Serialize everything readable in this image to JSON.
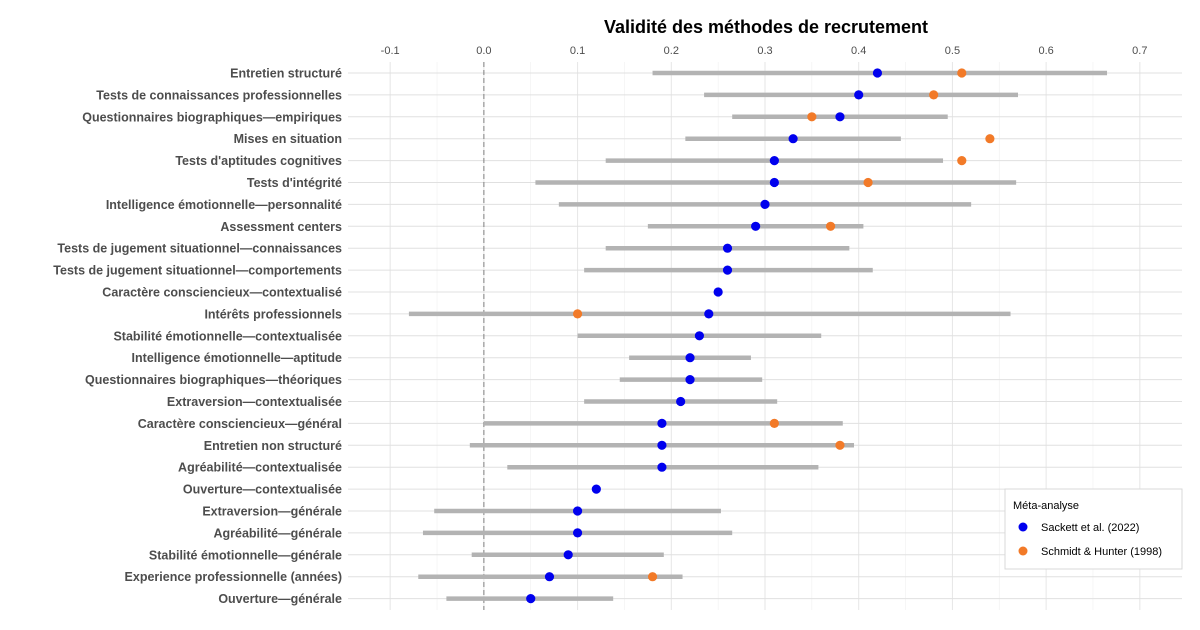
{
  "chart_data": {
    "type": "scatter",
    "title": "Validité des méthodes de recrutement",
    "xlabel": "",
    "ylabel": "",
    "xlim": [
      -0.145,
      0.745
    ],
    "x_ticks": [
      -0.1,
      0.0,
      0.1,
      0.2,
      0.3,
      0.4,
      0.5,
      0.6,
      0.7
    ],
    "x_tick_labels": [
      "-0.1",
      "0.0",
      "0.1",
      "0.2",
      "0.3",
      "0.4",
      "0.5",
      "0.6",
      "0.7"
    ],
    "x_axis_position": "top",
    "reference_line_x": 0.0,
    "grid": true,
    "legend": {
      "title": "Méta-analyse",
      "placement": "bottom-right",
      "entries": [
        {
          "name": "Sackett et al. (2022)",
          "color": "#0000ee"
        },
        {
          "name": "Schmidt & Hunter (1998)",
          "color": "#f27a28"
        }
      ]
    },
    "interval_color": "#b3b3b3",
    "categories": [
      "Entretien structuré",
      "Tests de connaissances professionnelles",
      "Questionnaires biographiques—empiriques",
      "Mises en situation",
      "Tests d'aptitudes cognitives",
      "Tests d'intégrité",
      "Intelligence émotionnelle—personnalité",
      "Assessment centers",
      "Tests de jugement situationnel—connaissances",
      "Tests de jugement situationnel—comportements",
      "Caractère consciencieux—contextualisé",
      "Intérêts professionnels",
      "Stabilité émotionnelle—contextualisée",
      "Intelligence émotionnelle—aptitude",
      "Questionnaires biographiques—théoriques",
      "Extraversion—contextualisée",
      "Caractère consciencieux—général",
      "Entretien non structuré",
      "Agréabilité—contextualisée",
      "Ouverture—contextualisée",
      "Extraversion—générale",
      "Agréabilité—générale",
      "Stabilité émotionnelle—générale",
      "Experience professionnelle (années)",
      "Ouverture—générale"
    ],
    "intervals": [
      [
        0.18,
        0.665
      ],
      [
        0.235,
        0.57
      ],
      [
        0.265,
        0.495
      ],
      [
        0.215,
        0.445
      ],
      [
        0.13,
        0.49
      ],
      [
        0.055,
        0.568
      ],
      [
        0.08,
        0.52
      ],
      [
        0.175,
        0.405
      ],
      [
        0.13,
        0.39
      ],
      [
        0.107,
        0.415
      ],
      null,
      [
        -0.08,
        0.562
      ],
      [
        0.1,
        0.36
      ],
      [
        0.155,
        0.285
      ],
      [
        0.145,
        0.297
      ],
      [
        0.107,
        0.313
      ],
      [
        0.0,
        0.383
      ],
      [
        -0.015,
        0.395
      ],
      [
        0.025,
        0.357
      ],
      null,
      [
        -0.053,
        0.253
      ],
      [
        -0.065,
        0.265
      ],
      [
        -0.013,
        0.192
      ],
      [
        -0.07,
        0.212
      ],
      [
        -0.04,
        0.138
      ]
    ],
    "series": [
      {
        "name": "Sackett et al. (2022)",
        "values": [
          0.42,
          0.4,
          0.38,
          0.33,
          0.31,
          0.31,
          0.3,
          0.29,
          0.26,
          0.26,
          0.25,
          0.24,
          0.23,
          0.22,
          0.22,
          0.21,
          0.19,
          0.19,
          0.19,
          0.12,
          0.1,
          0.1,
          0.09,
          0.07,
          0.05
        ]
      },
      {
        "name": "Schmidt & Hunter (1998)",
        "values": [
          0.51,
          0.48,
          0.35,
          0.54,
          0.51,
          0.41,
          null,
          0.37,
          null,
          null,
          null,
          0.1,
          null,
          null,
          null,
          null,
          0.31,
          0.38,
          null,
          null,
          null,
          null,
          null,
          0.18,
          null
        ]
      }
    ]
  }
}
